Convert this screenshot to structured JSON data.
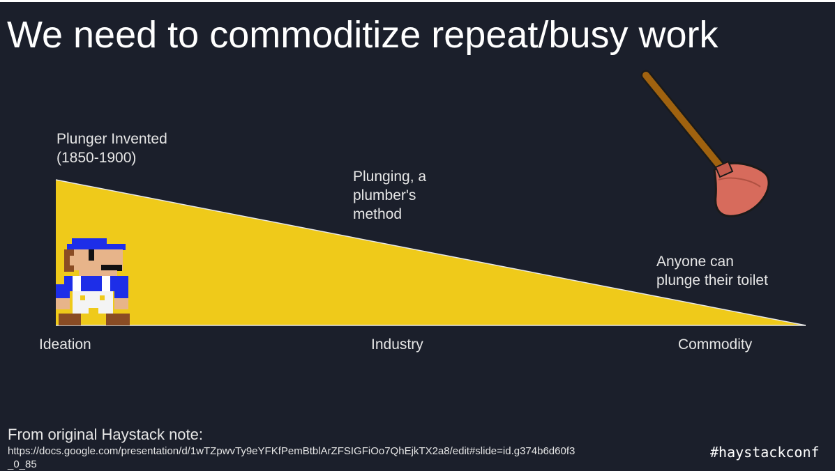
{
  "slide": {
    "title": "We need to commoditize repeat/busy work"
  },
  "stages": [
    {
      "lines": [
        "Plunger Invented",
        "(1850-1900)"
      ]
    },
    {
      "lines": [
        "Plunging, a",
        "plumber's",
        "method"
      ]
    },
    {
      "lines": [
        "Anyone can",
        "plunge their toilet"
      ]
    }
  ],
  "axis": {
    "labels": [
      "Ideation",
      "Industry",
      "Commodity"
    ]
  },
  "icons": {
    "character": "pixel-plumber-icon",
    "plunger": "plunger-icon"
  },
  "colors": {
    "background": "#1b1f2b",
    "wedge": "#efca1a",
    "text": "#ffffff"
  },
  "footer": {
    "heading": "From original Haystack note:",
    "link": "https://docs.google.com/presentation/d/1wTZpwvTy9eYFKfPemBtblArZFSIGFiOo7QhEjkTX2a8/edit#slide=id.g374b6d60f3_0_85",
    "hashtag": "#haystackconf"
  }
}
